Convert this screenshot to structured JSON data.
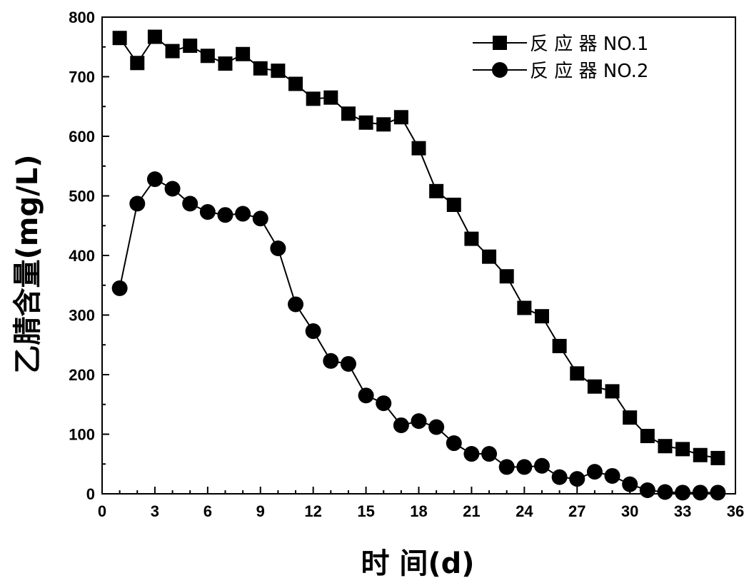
{
  "chart_data": {
    "type": "line",
    "title": "",
    "xlabel": "时 间(d)",
    "ylabel": "乙腈含量(mg/L)",
    "xlim": [
      0,
      36
    ],
    "ylim": [
      0,
      800
    ],
    "xticks": [
      0,
      3,
      6,
      9,
      12,
      15,
      18,
      21,
      24,
      27,
      30,
      33,
      36
    ],
    "yticks": [
      0,
      100,
      200,
      300,
      400,
      500,
      600,
      700,
      800
    ],
    "grid": false,
    "legend_position": "top-right",
    "series": [
      {
        "name": "反 应 器 NO.1",
        "marker": "square",
        "x": [
          1,
          2,
          3,
          4,
          5,
          6,
          7,
          8,
          9,
          10,
          11,
          12,
          13,
          14,
          15,
          16,
          17,
          18,
          19,
          20,
          21,
          22,
          23,
          24,
          25,
          26,
          27,
          28,
          29,
          30,
          31,
          32,
          33,
          34,
          35
        ],
        "values": [
          765,
          723,
          767,
          743,
          752,
          735,
          722,
          738,
          714,
          710,
          688,
          663,
          665,
          638,
          623,
          620,
          632,
          580,
          508,
          485,
          428,
          398,
          365,
          312,
          298,
          248,
          202,
          180,
          172,
          128,
          97,
          80,
          75,
          65,
          60
        ]
      },
      {
        "name": "反 应 器 NO.2",
        "marker": "circle",
        "x": [
          1,
          2,
          3,
          4,
          5,
          6,
          7,
          8,
          9,
          10,
          11,
          12,
          13,
          14,
          15,
          16,
          17,
          18,
          19,
          20,
          21,
          22,
          23,
          24,
          25,
          26,
          27,
          28,
          29,
          30,
          31,
          32,
          33,
          34,
          35
        ],
        "values": [
          345,
          487,
          528,
          512,
          487,
          473,
          468,
          470,
          462,
          412,
          318,
          273,
          223,
          218,
          165,
          152,
          115,
          122,
          112,
          85,
          67,
          67,
          45,
          45,
          47,
          28,
          25,
          37,
          30,
          16,
          6,
          3,
          2,
          2,
          2
        ]
      }
    ]
  }
}
